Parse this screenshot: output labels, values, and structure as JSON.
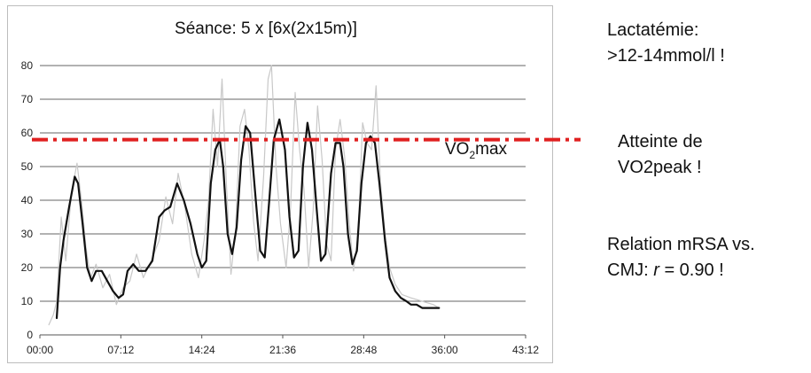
{
  "chart_data": {
    "type": "line",
    "title": "Séance: 5 x [6x(2x15m)]",
    "xlabel": "",
    "ylabel": "",
    "x_tick_labels": [
      "00:00",
      "07:12",
      "14:24",
      "21:36",
      "28:48",
      "36:00",
      "43:12"
    ],
    "x_range_minutes": [
      0,
      43.2
    ],
    "ylim": [
      0,
      80
    ],
    "y_ticks": [
      0,
      10,
      20,
      30,
      40,
      50,
      60,
      70,
      80
    ],
    "grid": "horizontal",
    "reference_line": {
      "value": 58,
      "style": "dash-dot",
      "color": "#e02020"
    },
    "vo2max_label": {
      "prefix": "VO",
      "sub": "2",
      "suffix": "max"
    },
    "series": [
      {
        "style": "smoothed",
        "color": "#111111",
        "x_minutes": [
          1.5,
          1.8,
          2.1,
          2.6,
          3.1,
          3.4,
          3.8,
          4.2,
          4.6,
          5.0,
          5.5,
          6.0,
          6.5,
          7.0,
          7.4,
          7.8,
          8.3,
          8.8,
          9.4,
          10.0,
          10.6,
          11.1,
          11.6,
          12.2,
          12.8,
          13.4,
          14.0,
          14.4,
          14.8,
          15.2,
          15.6,
          16.0,
          16.3,
          16.7,
          17.1,
          17.5,
          17.9,
          18.3,
          18.7,
          19.2,
          19.6,
          20.0,
          20.4,
          20.8,
          21.3,
          21.8,
          22.2,
          22.6,
          23.0,
          23.4,
          23.8,
          24.2,
          24.6,
          25.0,
          25.4,
          25.9,
          26.3,
          26.7,
          27.0,
          27.4,
          27.8,
          28.2,
          28.6,
          29.0,
          29.4,
          29.8,
          30.2,
          30.7,
          31.1,
          31.6,
          32.1,
          32.6,
          33.0,
          33.5,
          34.0,
          34.5,
          35.0,
          35.5
        ],
        "values": [
          5,
          20,
          28,
          38,
          47,
          45,
          33,
          20,
          16,
          19,
          19,
          16,
          13,
          11,
          12,
          19,
          21,
          19,
          19,
          22,
          35,
          37,
          38,
          45,
          40,
          33,
          24,
          20,
          22,
          45,
          55,
          58,
          50,
          30,
          24,
          32,
          52,
          62,
          60,
          40,
          25,
          23,
          40,
          58,
          64,
          55,
          35,
          23,
          25,
          50,
          63,
          55,
          38,
          22,
          24,
          48,
          57,
          57,
          50,
          30,
          21,
          25,
          45,
          57,
          59,
          57,
          45,
          28,
          17,
          13,
          11,
          10,
          9,
          9,
          8,
          8,
          8,
          8
        ]
      },
      {
        "style": "raw",
        "color": "#c8c8c8",
        "x_minutes": [
          0.8,
          1.2,
          1.5,
          1.9,
          2.3,
          2.8,
          3.3,
          3.7,
          4.1,
          4.5,
          5.0,
          5.6,
          6.2,
          6.8,
          7.4,
          8.0,
          8.6,
          9.2,
          9.9,
          10.6,
          11.2,
          11.8,
          12.3,
          12.9,
          13.5,
          14.1,
          14.6,
          15.0,
          15.4,
          15.8,
          16.2,
          16.6,
          17.0,
          17.4,
          17.8,
          18.2,
          18.6,
          19.0,
          19.4,
          19.9,
          20.3,
          20.6,
          21.0,
          21.4,
          21.9,
          22.3,
          22.7,
          23.1,
          23.5,
          23.9,
          24.3,
          24.7,
          25.1,
          25.5,
          25.9,
          26.3,
          26.7,
          27.1,
          27.5,
          27.9,
          28.3,
          28.7,
          29.1,
          29.5,
          29.9,
          30.3,
          30.7,
          31.1,
          31.6,
          32.2,
          33.0,
          34.0,
          35.0,
          35.5
        ],
        "values": [
          3,
          6,
          10,
          35,
          22,
          42,
          51,
          40,
          26,
          17,
          21,
          14,
          18,
          9,
          14,
          16,
          24,
          17,
          22,
          28,
          41,
          33,
          48,
          38,
          24,
          17,
          28,
          40,
          67,
          50,
          76,
          44,
          18,
          31,
          62,
          67,
          55,
          34,
          22,
          47,
          76,
          80,
          50,
          33,
          20,
          38,
          72,
          55,
          43,
          20,
          37,
          68,
          52,
          27,
          22,
          55,
          64,
          53,
          34,
          19,
          30,
          63,
          57,
          55,
          74,
          45,
          30,
          20,
          15,
          12,
          11,
          10,
          9,
          8
        ]
      }
    ]
  },
  "side_notes": {
    "lactate_line1": "Lactatémie:",
    "lactate_line2": ">12-14mmol/l !",
    "peak_line1": "Atteinte de",
    "peak_line2": "VO2peak !",
    "relation_line1": "Relation mRSA vs.",
    "relation_line2_prefix": "CMJ: ",
    "relation_line2_r": "r",
    "relation_line2_suffix": " = 0.90 !"
  }
}
